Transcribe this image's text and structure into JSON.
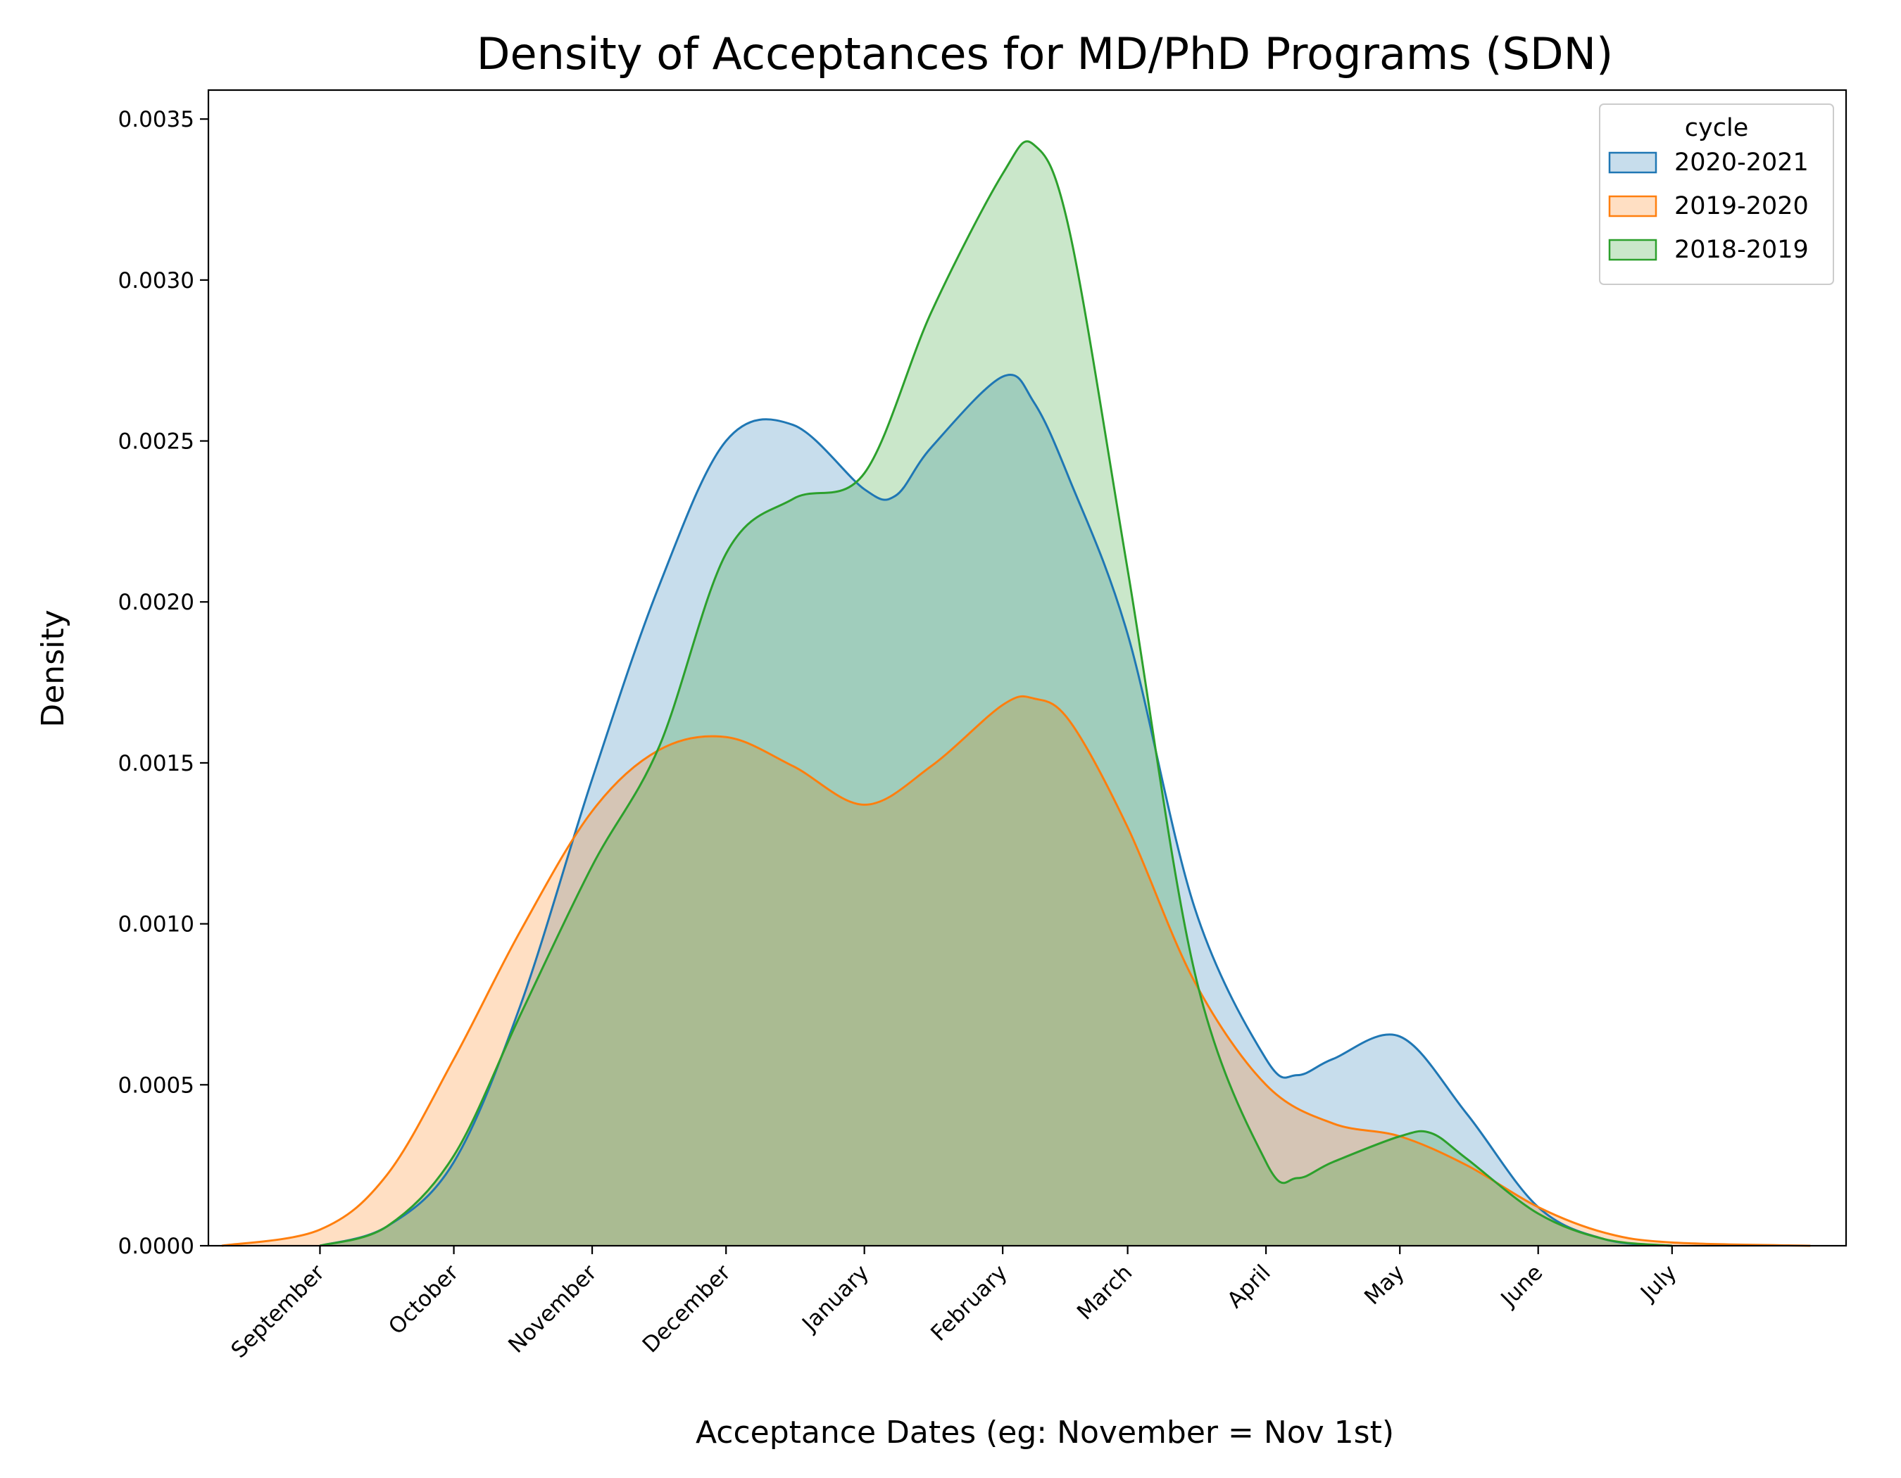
{
  "chart_data": {
    "type": "area",
    "title": "Density of Acceptances for MD/PhD Programs (SDN)",
    "xlabel": "Acceptance Dates (eg: November = Nov 1st)",
    "ylabel": "Density",
    "x_axis": {
      "type": "date",
      "ticks": [
        {
          "date": "2020-09-01",
          "label": "September"
        },
        {
          "date": "2020-10-01",
          "label": "October"
        },
        {
          "date": "2020-11-01",
          "label": "November"
        },
        {
          "date": "2020-12-01",
          "label": "December"
        },
        {
          "date": "2021-01-01",
          "label": "January"
        },
        {
          "date": "2021-02-01",
          "label": "February"
        },
        {
          "date": "2021-03-01",
          "label": "March"
        },
        {
          "date": "2021-04-01",
          "label": "April"
        },
        {
          "date": "2021-05-01",
          "label": "May"
        },
        {
          "date": "2021-06-01",
          "label": "June"
        },
        {
          "date": "2021-07-01",
          "label": "July"
        }
      ],
      "range": [
        "2020-08-07",
        "2021-08-09"
      ]
    },
    "y_axis": {
      "ticks": [
        "0.0000",
        "0.0005",
        "0.0010",
        "0.0015",
        "0.0020",
        "0.0025",
        "0.0030",
        "0.0035"
      ],
      "tick_values": [
        0,
        0.0005,
        0.001,
        0.0015,
        0.002,
        0.0025,
        0.003,
        0.0035
      ],
      "range": [
        0,
        0.00359
      ]
    },
    "grid": false,
    "legend": {
      "title": "cycle",
      "placement": "top-right"
    },
    "series": [
      {
        "name": "2020-2021",
        "color": "#1f77b4",
        "x": [
          "2020-09-01",
          "2020-09-16",
          "2020-10-01",
          "2020-10-16",
          "2020-11-01",
          "2020-11-16",
          "2020-12-01",
          "2020-12-16",
          "2021-01-01",
          "2021-01-08",
          "2021-01-16",
          "2021-02-01",
          "2021-02-08",
          "2021-02-16",
          "2021-03-01",
          "2021-03-16",
          "2021-04-01",
          "2021-04-08",
          "2021-04-16",
          "2021-05-01",
          "2021-05-16",
          "2021-06-01",
          "2021-06-16",
          "2021-07-01"
        ],
        "y": [
          0.0,
          6e-05,
          0.00026,
          0.00075,
          0.00145,
          0.00205,
          0.0025,
          0.00255,
          0.00235,
          0.00233,
          0.00248,
          0.0027,
          0.00262,
          0.00238,
          0.0019,
          0.00105,
          0.00058,
          0.00053,
          0.00058,
          0.00065,
          0.00041,
          0.00012,
          2e-05,
          0.0
        ]
      },
      {
        "name": "2019-2020",
        "color": "#ff7f0e",
        "x": [
          "2020-08-10",
          "2020-09-01",
          "2020-09-16",
          "2020-10-01",
          "2020-10-16",
          "2020-11-01",
          "2020-11-16",
          "2020-12-01",
          "2020-12-16",
          "2021-01-01",
          "2021-01-16",
          "2021-02-01",
          "2021-02-08",
          "2021-02-16",
          "2021-03-01",
          "2021-03-16",
          "2021-04-01",
          "2021-04-16",
          "2021-05-01",
          "2021-05-16",
          "2021-06-01",
          "2021-06-16",
          "2021-07-01",
          "2021-08-01"
        ],
        "y": [
          0.0,
          5e-05,
          0.00022,
          0.00058,
          0.00098,
          0.00135,
          0.00154,
          0.00158,
          0.00149,
          0.00137,
          0.00149,
          0.00168,
          0.0017,
          0.00163,
          0.0013,
          0.00082,
          0.0005,
          0.00038,
          0.00034,
          0.00025,
          0.00012,
          4e-05,
          1e-05,
          0.0
        ]
      },
      {
        "name": "2018-2019",
        "color": "#2ca02c",
        "x": [
          "2020-09-01",
          "2020-09-16",
          "2020-10-01",
          "2020-10-16",
          "2020-11-01",
          "2020-11-16",
          "2020-12-01",
          "2020-12-16",
          "2021-01-01",
          "2021-01-16",
          "2021-02-01",
          "2021-02-08",
          "2021-02-16",
          "2021-03-01",
          "2021-03-16",
          "2021-04-01",
          "2021-04-08",
          "2021-04-16",
          "2021-05-01",
          "2021-05-08",
          "2021-05-16",
          "2021-06-01",
          "2021-06-16",
          "2021-07-01"
        ],
        "y": [
          0.0,
          6e-05,
          0.00028,
          0.00072,
          0.00118,
          0.00155,
          0.00215,
          0.00232,
          0.0024,
          0.0029,
          0.00333,
          0.00342,
          0.00315,
          0.0021,
          0.00085,
          0.00026,
          0.00021,
          0.00026,
          0.00034,
          0.00035,
          0.00027,
          0.0001,
          2e-05,
          0.0
        ]
      }
    ]
  }
}
